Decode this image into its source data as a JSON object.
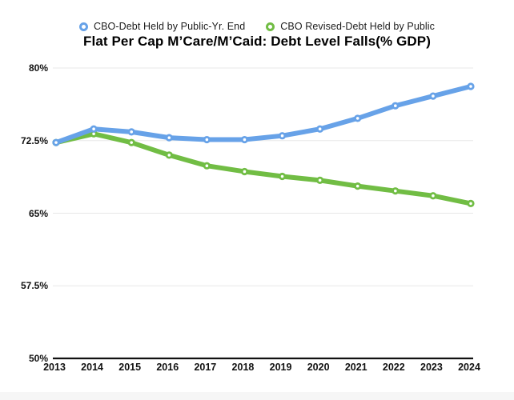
{
  "chart_data": {
    "type": "line",
    "title": "Flat Per Cap M’Care/M’Caid: Debt Level Falls(% GDP)",
    "categories": [
      "2013",
      "2014",
      "2015",
      "2016",
      "2017",
      "2018",
      "2019",
      "2020",
      "2021",
      "2022",
      "2023",
      "2024"
    ],
    "series": [
      {
        "name": "CBO-Debt Held by Public-Yr. End",
        "color": "#67A2E8",
        "values": [
          72.3,
          73.7,
          73.4,
          72.8,
          72.6,
          72.6,
          73.0,
          73.7,
          74.8,
          76.1,
          77.1,
          78.1
        ]
      },
      {
        "name": "CBO Revised-Debt Held by Public",
        "color": "#71BD44",
        "values": [
          72.3,
          73.2,
          72.3,
          71.0,
          69.9,
          69.3,
          68.8,
          68.4,
          67.8,
          67.3,
          66.8,
          66.0
        ]
      }
    ],
    "y_ticks": [
      {
        "label": "80%",
        "value": 80
      },
      {
        "label": "72.5%",
        "value": 72.5
      },
      {
        "label": "65%",
        "value": 65
      },
      {
        "label": "57.5%",
        "value": 57.5
      },
      {
        "label": "50%",
        "value": 50
      }
    ],
    "ylim": [
      50,
      80
    ],
    "grid": true,
    "legend_position": "top",
    "gridline_color": "#e7e7e7",
    "axis_color": "#111111",
    "footer_strip_color": "#f6f6f6"
  }
}
